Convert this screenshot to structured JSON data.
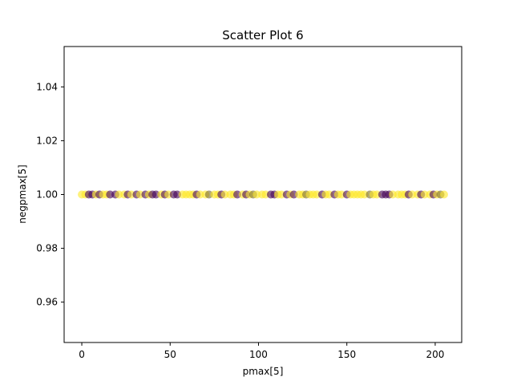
{
  "chart_data": {
    "type": "scatter",
    "title": "Scatter Plot 6",
    "xlabel": "pmax[5]",
    "ylabel": "negpmax[5]",
    "xlim": [
      -10,
      215
    ],
    "ylim": [
      0.945,
      1.055
    ],
    "x_ticks": [
      0,
      50,
      100,
      150,
      200
    ],
    "x_tick_labels": [
      "0",
      "50",
      "100",
      "150",
      "200"
    ],
    "y_ticks": [
      0.96,
      0.98,
      1.0,
      1.02,
      1.04
    ],
    "y_tick_labels": [
      "0.96",
      "0.98",
      "1.00",
      "1.02",
      "1.04"
    ],
    "grid": false,
    "point_alpha": 0.6,
    "colors": {
      "purple": "#440154",
      "yellow": "#fde725",
      "olive": "#7a6a2a"
    },
    "points": [
      {
        "x": 0,
        "y": 1.0,
        "c": "yellow"
      },
      {
        "x": 2,
        "y": 1.0,
        "c": "yellow"
      },
      {
        "x": 4,
        "y": 1.0,
        "c": "purple"
      },
      {
        "x": 6,
        "y": 1.0,
        "c": "purple"
      },
      {
        "x": 8,
        "y": 1.0,
        "c": "yellow"
      },
      {
        "x": 10,
        "y": 1.0,
        "c": "purple"
      },
      {
        "x": 12,
        "y": 1.0,
        "c": "yellow"
      },
      {
        "x": 14,
        "y": 1.0,
        "c": "yellow"
      },
      {
        "x": 16,
        "y": 1.0,
        "c": "purple"
      },
      {
        "x": 19,
        "y": 1.0,
        "c": "purple"
      },
      {
        "x": 21,
        "y": 1.0,
        "c": "yellow"
      },
      {
        "x": 24,
        "y": 1.0,
        "c": "yellow"
      },
      {
        "x": 26,
        "y": 1.0,
        "c": "purple"
      },
      {
        "x": 28,
        "y": 1.0,
        "c": "yellow"
      },
      {
        "x": 31,
        "y": 1.0,
        "c": "purple"
      },
      {
        "x": 33,
        "y": 1.0,
        "c": "yellow"
      },
      {
        "x": 36,
        "y": 1.0,
        "c": "purple"
      },
      {
        "x": 38,
        "y": 1.0,
        "c": "yellow"
      },
      {
        "x": 40,
        "y": 1.0,
        "c": "purple"
      },
      {
        "x": 42,
        "y": 1.0,
        "c": "purple"
      },
      {
        "x": 45,
        "y": 1.0,
        "c": "yellow"
      },
      {
        "x": 47,
        "y": 1.0,
        "c": "purple"
      },
      {
        "x": 49,
        "y": 1.0,
        "c": "yellow"
      },
      {
        "x": 52,
        "y": 1.0,
        "c": "purple"
      },
      {
        "x": 54,
        "y": 1.0,
        "c": "purple"
      },
      {
        "x": 57,
        "y": 1.0,
        "c": "yellow"
      },
      {
        "x": 59,
        "y": 1.0,
        "c": "yellow"
      },
      {
        "x": 61,
        "y": 1.0,
        "c": "yellow"
      },
      {
        "x": 63,
        "y": 1.0,
        "c": "yellow"
      },
      {
        "x": 65,
        "y": 1.0,
        "c": "purple"
      },
      {
        "x": 67,
        "y": 1.0,
        "c": "yellow"
      },
      {
        "x": 70,
        "y": 1.0,
        "c": "yellow"
      },
      {
        "x": 72,
        "y": 1.0,
        "c": "olive"
      },
      {
        "x": 75,
        "y": 1.0,
        "c": "yellow"
      },
      {
        "x": 77,
        "y": 1.0,
        "c": "yellow"
      },
      {
        "x": 79,
        "y": 1.0,
        "c": "purple"
      },
      {
        "x": 81,
        "y": 1.0,
        "c": "yellow"
      },
      {
        "x": 84,
        "y": 1.0,
        "c": "yellow"
      },
      {
        "x": 86,
        "y": 1.0,
        "c": "yellow"
      },
      {
        "x": 88,
        "y": 1.0,
        "c": "purple"
      },
      {
        "x": 91,
        "y": 1.0,
        "c": "yellow"
      },
      {
        "x": 93,
        "y": 1.0,
        "c": "purple"
      },
      {
        "x": 95,
        "y": 1.0,
        "c": "yellow"
      },
      {
        "x": 97,
        "y": 1.0,
        "c": "olive"
      },
      {
        "x": 99,
        "y": 1.0,
        "c": "yellow"
      },
      {
        "x": 102,
        "y": 1.0,
        "c": "yellow"
      },
      {
        "x": 104,
        "y": 1.0,
        "c": "yellow"
      },
      {
        "x": 107,
        "y": 1.0,
        "c": "purple"
      },
      {
        "x": 109,
        "y": 1.0,
        "c": "purple"
      },
      {
        "x": 111,
        "y": 1.0,
        "c": "yellow"
      },
      {
        "x": 113,
        "y": 1.0,
        "c": "yellow"
      },
      {
        "x": 116,
        "y": 1.0,
        "c": "purple"
      },
      {
        "x": 118,
        "y": 1.0,
        "c": "yellow"
      },
      {
        "x": 120,
        "y": 1.0,
        "c": "purple"
      },
      {
        "x": 123,
        "y": 1.0,
        "c": "yellow"
      },
      {
        "x": 125,
        "y": 1.0,
        "c": "yellow"
      },
      {
        "x": 127,
        "y": 1.0,
        "c": "olive"
      },
      {
        "x": 129,
        "y": 1.0,
        "c": "yellow"
      },
      {
        "x": 131,
        "y": 1.0,
        "c": "yellow"
      },
      {
        "x": 133,
        "y": 1.0,
        "c": "yellow"
      },
      {
        "x": 136,
        "y": 1.0,
        "c": "purple"
      },
      {
        "x": 138,
        "y": 1.0,
        "c": "yellow"
      },
      {
        "x": 140,
        "y": 1.0,
        "c": "yellow"
      },
      {
        "x": 143,
        "y": 1.0,
        "c": "purple"
      },
      {
        "x": 145,
        "y": 1.0,
        "c": "yellow"
      },
      {
        "x": 147,
        "y": 1.0,
        "c": "yellow"
      },
      {
        "x": 150,
        "y": 1.0,
        "c": "purple"
      },
      {
        "x": 152,
        "y": 1.0,
        "c": "yellow"
      },
      {
        "x": 154,
        "y": 1.0,
        "c": "yellow"
      },
      {
        "x": 156,
        "y": 1.0,
        "c": "yellow"
      },
      {
        "x": 158,
        "y": 1.0,
        "c": "yellow"
      },
      {
        "x": 160,
        "y": 1.0,
        "c": "yellow"
      },
      {
        "x": 163,
        "y": 1.0,
        "c": "olive"
      },
      {
        "x": 165,
        "y": 1.0,
        "c": "yellow"
      },
      {
        "x": 167,
        "y": 1.0,
        "c": "yellow"
      },
      {
        "x": 170,
        "y": 1.0,
        "c": "purple"
      },
      {
        "x": 172,
        "y": 1.0,
        "c": "purple"
      },
      {
        "x": 174,
        "y": 1.0,
        "c": "purple"
      },
      {
        "x": 176,
        "y": 1.0,
        "c": "yellow"
      },
      {
        "x": 179,
        "y": 1.0,
        "c": "yellow"
      },
      {
        "x": 181,
        "y": 1.0,
        "c": "yellow"
      },
      {
        "x": 183,
        "y": 1.0,
        "c": "yellow"
      },
      {
        "x": 185,
        "y": 1.0,
        "c": "purple"
      },
      {
        "x": 187,
        "y": 1.0,
        "c": "yellow"
      },
      {
        "x": 190,
        "y": 1.0,
        "c": "yellow"
      },
      {
        "x": 192,
        "y": 1.0,
        "c": "purple"
      },
      {
        "x": 194,
        "y": 1.0,
        "c": "yellow"
      },
      {
        "x": 197,
        "y": 1.0,
        "c": "yellow"
      },
      {
        "x": 199,
        "y": 1.0,
        "c": "purple"
      },
      {
        "x": 201,
        "y": 1.0,
        "c": "yellow"
      },
      {
        "x": 203,
        "y": 1.0,
        "c": "olive"
      },
      {
        "x": 205,
        "y": 1.0,
        "c": "yellow"
      }
    ]
  }
}
